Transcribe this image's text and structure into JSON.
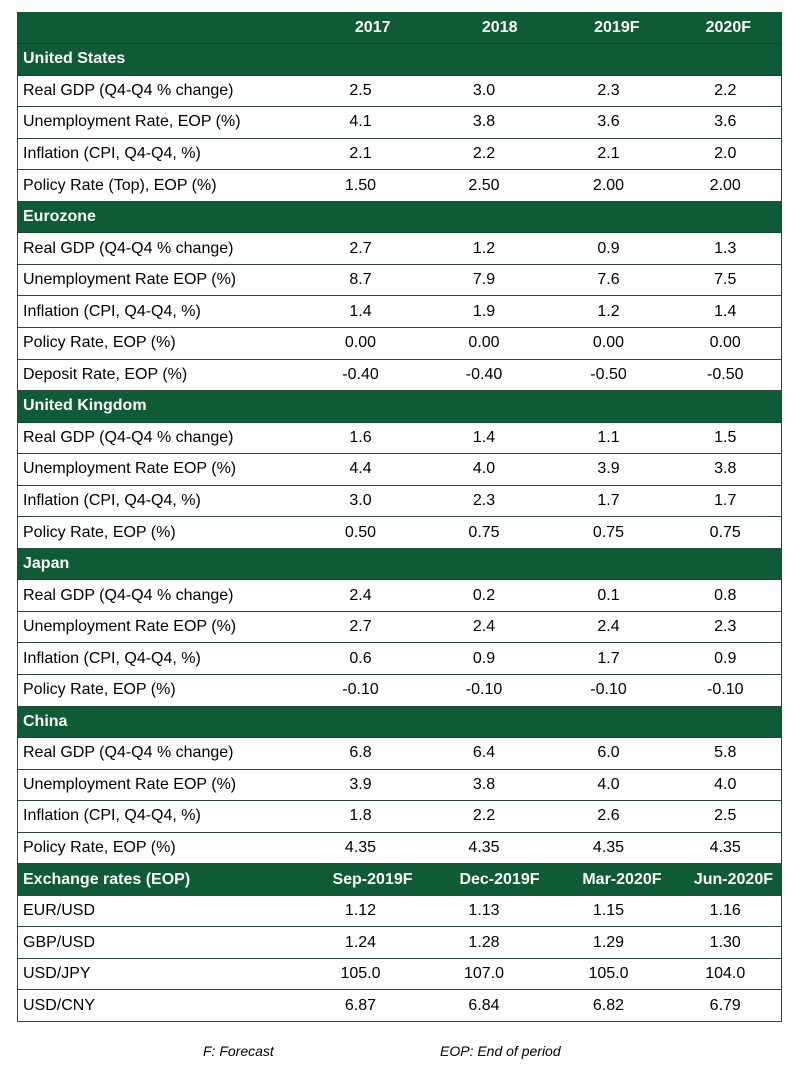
{
  "header": {
    "label": "",
    "cols": [
      "2017",
      "2018",
      "2019F",
      "2020F"
    ]
  },
  "sections": [
    {
      "title": "United States",
      "rows": [
        {
          "label": "Real GDP (Q4-Q4 % change)",
          "values": [
            "2.5",
            "3.0",
            "2.3",
            "2.2"
          ]
        },
        {
          "label": "Unemployment Rate, EOP (%)",
          "values": [
            "4.1",
            "3.8",
            "3.6",
            "3.6"
          ]
        },
        {
          "label": "Inflation (CPI, Q4-Q4, %)",
          "values": [
            "2.1",
            "2.2",
            "2.1",
            "2.0"
          ]
        },
        {
          "label": "Policy Rate (Top), EOP (%)",
          "values": [
            "1.50",
            "2.50",
            "2.00",
            "2.00"
          ]
        }
      ]
    },
    {
      "title": "Eurozone",
      "rows": [
        {
          "label": "Real GDP (Q4-Q4 % change)",
          "values": [
            "2.7",
            "1.2",
            "0.9",
            "1.3"
          ]
        },
        {
          "label": "Unemployment Rate EOP (%)",
          "values": [
            "8.7",
            "7.9",
            "7.6",
            "7.5"
          ]
        },
        {
          "label": "Inflation (CPI, Q4-Q4, %)",
          "values": [
            "1.4",
            "1.9",
            "1.2",
            "1.4"
          ]
        },
        {
          "label": "Policy Rate, EOP (%)",
          "values": [
            "0.00",
            "0.00",
            "0.00",
            "0.00"
          ]
        },
        {
          "label": "Deposit Rate, EOP (%)",
          "values": [
            "-0.40",
            "-0.40",
            "-0.50",
            "-0.50"
          ]
        }
      ]
    },
    {
      "title": "United Kingdom",
      "rows": [
        {
          "label": "Real GDP (Q4-Q4 % change)",
          "values": [
            "1.6",
            "1.4",
            "1.1",
            "1.5"
          ]
        },
        {
          "label": "Unemployment Rate EOP (%)",
          "values": [
            "4.4",
            "4.0",
            "3.9",
            "3.8"
          ]
        },
        {
          "label": "Inflation (CPI, Q4-Q4, %)",
          "values": [
            "3.0",
            "2.3",
            "1.7",
            "1.7"
          ]
        },
        {
          "label": "Policy Rate, EOP (%)",
          "values": [
            "0.50",
            "0.75",
            "0.75",
            "0.75"
          ]
        }
      ]
    },
    {
      "title": "Japan",
      "rows": [
        {
          "label": "Real GDP (Q4-Q4 % change)",
          "values": [
            "2.4",
            "0.2",
            "0.1",
            "0.8"
          ]
        },
        {
          "label": "Unemployment Rate EOP (%)",
          "values": [
            "2.7",
            "2.4",
            "2.4",
            "2.3"
          ]
        },
        {
          "label": "Inflation (CPI, Q4-Q4, %)",
          "values": [
            "0.6",
            "0.9",
            "1.7",
            "0.9"
          ]
        },
        {
          "label": "Policy Rate, EOP (%)",
          "values": [
            "-0.10",
            "-0.10",
            "-0.10",
            "-0.10"
          ]
        }
      ]
    },
    {
      "title": "China",
      "rows": [
        {
          "label": "Real GDP (Q4-Q4 % change)",
          "values": [
            "6.8",
            "6.4",
            "6.0",
            "5.8"
          ]
        },
        {
          "label": "Unemployment Rate EOP (%)",
          "values": [
            "3.9",
            "3.8",
            "4.0",
            "4.0"
          ]
        },
        {
          "label": "Inflation (CPI, Q4-Q4, %)",
          "values": [
            "1.8",
            "2.2",
            "2.6",
            "2.5"
          ]
        },
        {
          "label": "Policy Rate, EOP (%)",
          "values": [
            "4.35",
            "4.35",
            "4.35",
            "4.35"
          ]
        }
      ]
    }
  ],
  "fx": {
    "title": "Exchange rates (EOP)",
    "cols": [
      "Sep-2019F",
      "Dec-2019F",
      "Mar-2020F",
      "Jun-2020F"
    ],
    "rows": [
      {
        "label": "EUR/USD",
        "values": [
          "1.12",
          "1.13",
          "1.15",
          "1.16"
        ]
      },
      {
        "label": "GBP/USD",
        "values": [
          "1.24",
          "1.28",
          "1.29",
          "1.30"
        ]
      },
      {
        "label": "USD/JPY",
        "values": [
          "105.0",
          "107.0",
          "105.0",
          "104.0"
        ]
      },
      {
        "label": "USD/CNY",
        "values": [
          "6.87",
          "6.84",
          "6.82",
          "6.79"
        ]
      }
    ]
  },
  "footnotes": {
    "forecast": "F: Forecast",
    "eop": "EOP: End of period"
  },
  "colors": {
    "header_bg": "#0e5b35",
    "header_text": "#ffffff"
  }
}
